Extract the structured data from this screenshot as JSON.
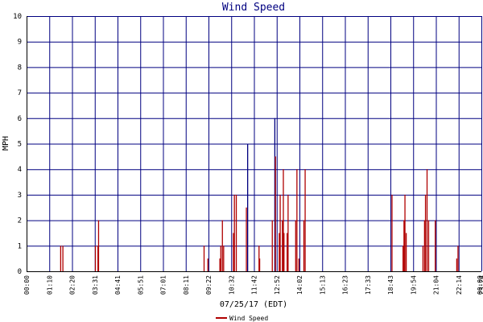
{
  "chart_data": {
    "type": "bar",
    "title": "Wind Speed",
    "ylabel": "MPH",
    "xlabel": "07/25/17 (EDT)",
    "ylim": [
      0,
      10
    ],
    "y_ticks": [
      0,
      1,
      2,
      3,
      4,
      5,
      6,
      7,
      8,
      9,
      10
    ],
    "x_tick_labels": [
      "00:00",
      "01:10",
      "02:20",
      "03:31",
      "04:41",
      "05:51",
      "07:01",
      "08:11",
      "09:22",
      "10:32",
      "11:42",
      "12:52",
      "14:02",
      "15:13",
      "16:23",
      "17:33",
      "18:43",
      "19:54",
      "21:04",
      "22:14",
      "23:24",
      "00:00"
    ],
    "x_range_hours": [
      0,
      24
    ],
    "grid": true,
    "legend_position": "bottom-center",
    "series": [
      {
        "name": "Wind Speed",
        "color": "#b00000",
        "points": [
          {
            "t": "01:48",
            "v": 1.0
          },
          {
            "t": "01:55",
            "v": 1.0
          },
          {
            "t": "03:38",
            "v": 1.0
          },
          {
            "t": "03:46",
            "v": 1.0
          },
          {
            "t": "03:48",
            "v": 2.0
          },
          {
            "t": "09:22",
            "v": 1.0
          },
          {
            "t": "09:34",
            "v": 0.5
          },
          {
            "t": "10:12",
            "v": 0.5
          },
          {
            "t": "10:15",
            "v": 1.0
          },
          {
            "t": "10:20",
            "v": 2.0
          },
          {
            "t": "10:24",
            "v": 1.0
          },
          {
            "t": "10:55",
            "v": 1.5
          },
          {
            "t": "10:58",
            "v": 3.0
          },
          {
            "t": "11:04",
            "v": 3.0
          },
          {
            "t": "11:36",
            "v": 2.5
          },
          {
            "t": "11:40",
            "v": 5.0
          },
          {
            "t": "12:16",
            "v": 1.0
          },
          {
            "t": "12:18",
            "v": 0.5
          },
          {
            "t": "12:58",
            "v": 2.0
          },
          {
            "t": "13:06",
            "v": 6.0
          },
          {
            "t": "13:08",
            "v": 4.5
          },
          {
            "t": "13:20",
            "v": 1.5
          },
          {
            "t": "13:23",
            "v": 3.0
          },
          {
            "t": "13:30",
            "v": 2.0
          },
          {
            "t": "13:33",
            "v": 4.0
          },
          {
            "t": "13:35",
            "v": 1.5
          },
          {
            "t": "13:45",
            "v": 1.5
          },
          {
            "t": "13:48",
            "v": 3.0
          },
          {
            "t": "14:12",
            "v": 2.0
          },
          {
            "t": "14:16",
            "v": 4.0
          },
          {
            "t": "14:22",
            "v": 0.5
          },
          {
            "t": "14:38",
            "v": 2.0
          },
          {
            "t": "14:42",
            "v": 4.0
          },
          {
            "t": "19:17",
            "v": 3.0
          },
          {
            "t": "19:52",
            "v": 1.0
          },
          {
            "t": "19:55",
            "v": 2.0
          },
          {
            "t": "19:58",
            "v": 3.0
          },
          {
            "t": "20:02",
            "v": 1.5
          },
          {
            "t": "20:55",
            "v": 1.0
          },
          {
            "t": "21:00",
            "v": 2.0
          },
          {
            "t": "21:03",
            "v": 3.0
          },
          {
            "t": "21:08",
            "v": 4.0
          },
          {
            "t": "21:13",
            "v": 2.0
          },
          {
            "t": "21:34",
            "v": 2.0
          },
          {
            "t": "22:42",
            "v": 0.5
          },
          {
            "t": "22:46",
            "v": 1.0
          }
        ]
      }
    ]
  },
  "colors": {
    "grid": "#000080",
    "axis": "#000000",
    "series": "#b00000",
    "title": "#000080"
  }
}
